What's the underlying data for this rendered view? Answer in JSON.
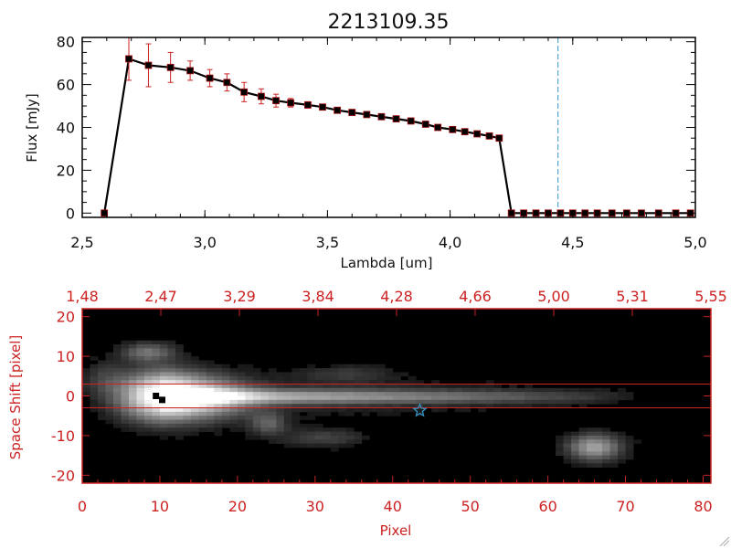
{
  "chart_data": [
    {
      "type": "line",
      "title": "2213109.35",
      "xlabel": "Lambda [um]",
      "ylabel": "Flux [mJy]",
      "xlim": [
        2.5,
        5.0
      ],
      "ylim": [
        -2,
        82
      ],
      "xticks": [
        "2.5",
        "3.0",
        "3.5",
        "4.0",
        "4.5",
        "5.0"
      ],
      "yticks": [
        "0",
        "20",
        "40",
        "60",
        "80"
      ],
      "marker_color": "#000000",
      "errorbar_color": "#cc2222",
      "vline_color": "#3399cc",
      "vline_x": 4.44,
      "series": [
        {
          "x": [
            2.59,
            2.69,
            2.77,
            2.86,
            2.94,
            3.02,
            3.09,
            3.16,
            3.23,
            3.29,
            3.35,
            3.42,
            3.48,
            3.54,
            3.6,
            3.66,
            3.72,
            3.78,
            3.84,
            3.9,
            3.95,
            4.01,
            4.06,
            4.11,
            4.16,
            4.2,
            4.25,
            4.3,
            4.35,
            4.4,
            4.45,
            4.5,
            4.55,
            4.6,
            4.66,
            4.72,
            4.78,
            4.85,
            4.92,
            4.98
          ],
          "y": [
            0,
            72,
            69,
            68,
            66.5,
            63,
            61,
            56.5,
            54.5,
            52.5,
            51.5,
            50.5,
            49.5,
            48,
            47,
            46,
            45,
            44,
            43,
            41.5,
            40,
            39,
            38,
            37,
            36,
            35,
            0,
            0,
            0,
            0,
            0,
            0,
            0,
            0,
            0,
            0,
            0,
            0,
            0,
            0
          ],
          "err": [
            0,
            10,
            10,
            7,
            4.5,
            4,
            4,
            4.5,
            3.5,
            3,
            2,
            1.5,
            1,
            1,
            0.8,
            0.7,
            0.7,
            0.6,
            0.6,
            0.6,
            0.6,
            0.6,
            0.6,
            0.6,
            0.6,
            0.6,
            0,
            0,
            0,
            0,
            0,
            0,
            0,
            0,
            0,
            0,
            0,
            0,
            0,
            0
          ]
        }
      ]
    },
    {
      "type": "heatmap",
      "xlabel": "Pixel",
      "ylabel": "Space Shift [pixel]",
      "xlim": [
        0,
        81
      ],
      "ylim": [
        -22,
        22
      ],
      "xticks": [
        "0",
        "10",
        "20",
        "30",
        "40",
        "50",
        "60",
        "70",
        "80"
      ],
      "yticks": [
        "-20",
        "-10",
        "0",
        "10",
        "20"
      ],
      "top_ticks": [
        "1.48",
        "2.47",
        "3.29",
        "3.84",
        "4.28",
        "4.66",
        "5.00",
        "5.31",
        "5.55"
      ],
      "axis_color": "#cc2222",
      "aperture_y": [
        3,
        -3
      ],
      "trace_markers": [
        {
          "x": 9.5,
          "y": 0
        },
        {
          "x": 10.3,
          "y": -1
        }
      ],
      "star_marker": {
        "x": 43.5,
        "y": -3.7,
        "color": "#3399cc"
      },
      "sources": [
        {
          "x": 10,
          "y": 0,
          "sx": 3.5,
          "sy": 4,
          "amp": 1.0
        },
        {
          "x": 16,
          "y": -0.5,
          "sx": 4,
          "sy": 3.5,
          "amp": 0.55
        },
        {
          "x": 8.5,
          "y": 11,
          "sx": 2.2,
          "sy": 1.6,
          "amp": 0.35
        },
        {
          "x": 24,
          "y": -7,
          "sx": 1.6,
          "sy": 2,
          "amp": 0.28
        },
        {
          "x": 66,
          "y": -13,
          "sx": 2.3,
          "sy": 2.2,
          "amp": 0.55
        },
        {
          "x": 31,
          "y": -10.5,
          "sx": 3.5,
          "sy": 1.5,
          "amp": 0.18
        },
        {
          "x": 34,
          "y": 5.5,
          "sx": 4,
          "sy": 1.5,
          "amp": 0.13
        },
        {
          "x": 3,
          "y": 4,
          "sx": 2,
          "sy": 3,
          "amp": 0.15
        }
      ],
      "trace": {
        "x_start": 10,
        "x_end": 73,
        "y": -0.2,
        "sy": 1.2,
        "amp": 0.65
      }
    }
  ]
}
